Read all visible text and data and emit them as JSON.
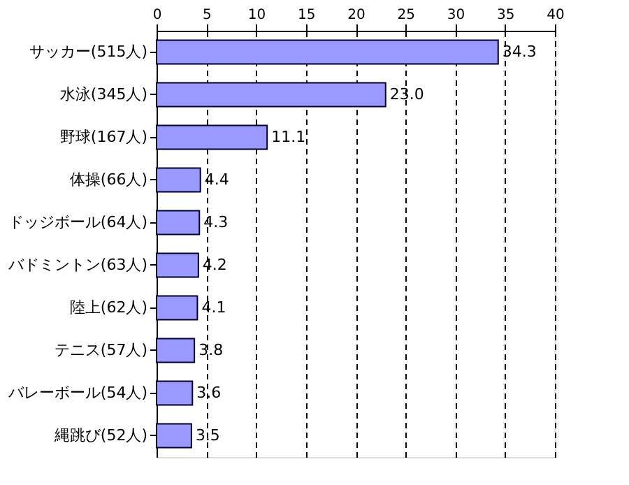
{
  "chart_data": {
    "type": "bar",
    "orientation": "horizontal",
    "categories": [
      "サッカー(515人)",
      "水泳(345人)",
      "野球(167人)",
      "体操(66人)",
      "ドッジボール(64人)",
      "バドミントン(63人)",
      "陸上(62人)",
      "テニス(57人)",
      "バレーボール(54人)",
      "縄跳び(52人)"
    ],
    "values": [
      34.3,
      23.0,
      11.1,
      4.4,
      4.3,
      4.2,
      4.1,
      3.8,
      3.6,
      3.5
    ],
    "value_labels": [
      "34.3",
      "23.0",
      "11.1",
      "4.4",
      "4.3",
      "4.2",
      "4.1",
      "3.8",
      "3.6",
      "3.5"
    ],
    "color": "#9999ff",
    "xlim": [
      0,
      40
    ],
    "xticks": [
      0,
      5,
      10,
      15,
      20,
      25,
      30,
      35,
      40
    ],
    "grid": "x",
    "line_style": "dashed"
  }
}
